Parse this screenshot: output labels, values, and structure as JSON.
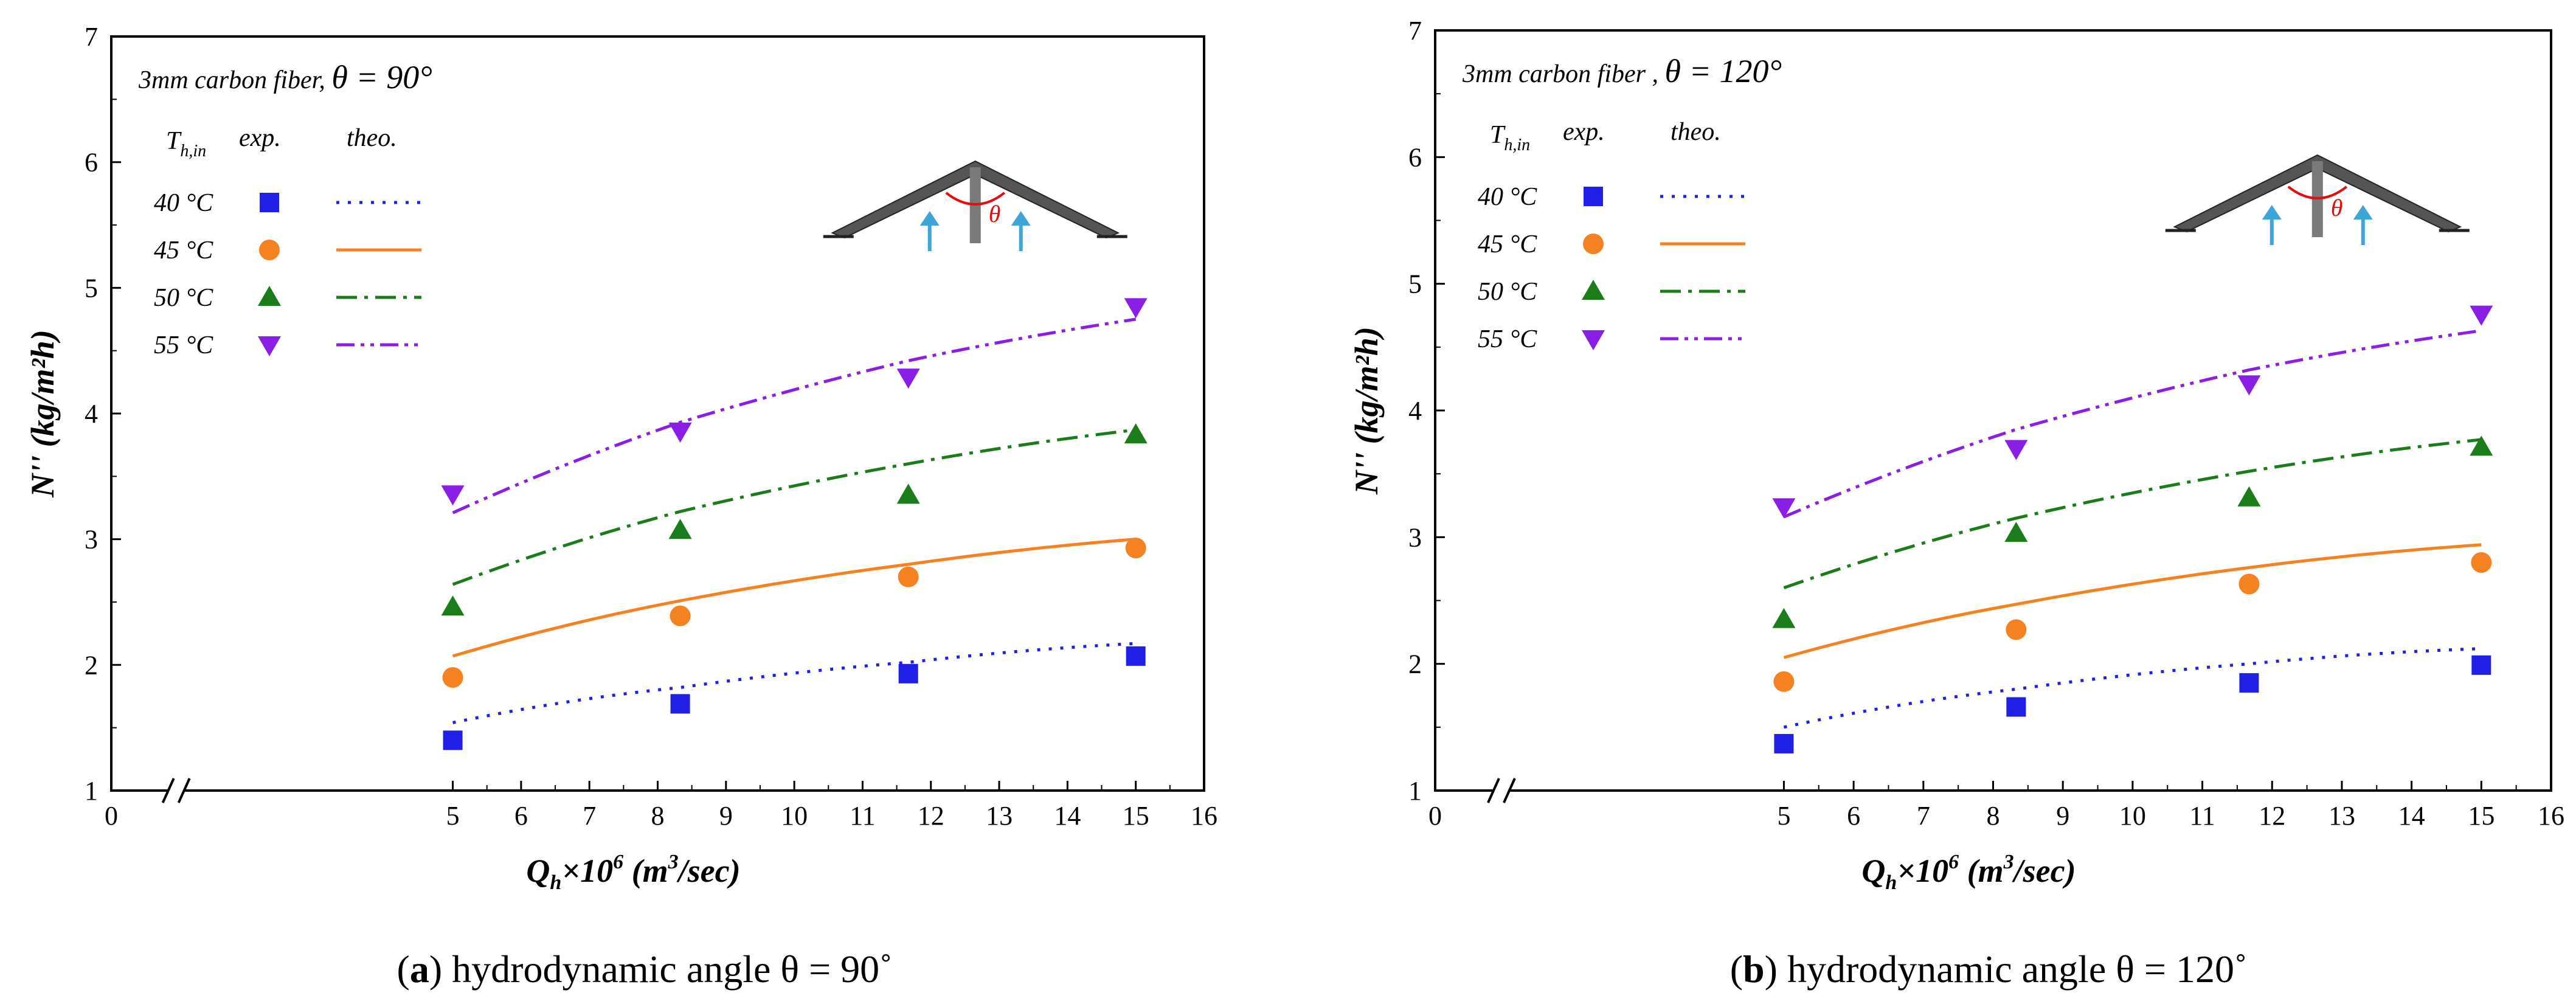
{
  "chart_data": [
    {
      "type": "scatter",
      "panel": "(a)",
      "title": "3mm carbon fiber,",
      "angle_label": "θ = 90°",
      "caption_letter": "a",
      "caption_text": "hydrodynamic angle θ = 90˚",
      "xlabel": {
        "base": "Q",
        "sub": "h",
        "mid": "×10",
        "sup": "6",
        "unit1": " (m",
        "unit_sup": "3",
        "unit2": "/sec)"
      },
      "ylabel": "N'' (kg/m²h)",
      "xlim": [
        0,
        16
      ],
      "ylim": [
        1,
        7
      ],
      "x_ticks": [
        "0",
        "5",
        "6",
        "7",
        "8",
        "9",
        "10",
        "11",
        "12",
        "13",
        "14",
        "15",
        "16"
      ],
      "y_ticks": [
        "1",
        "2",
        "3",
        "4",
        "5",
        "6",
        "7"
      ],
      "legend_header": {
        "temp_label": "T",
        "temp_sub": "h,in",
        "exp": "exp.",
        "theo": "theo."
      },
      "diagram_symbol": "θ",
      "series": [
        {
          "name": "40 °C",
          "marker": "square",
          "color": "#1f1fe6",
          "dash": "dot",
          "x": [
            5,
            8.33,
            11.67,
            15
          ],
          "values": [
            1.4,
            1.69,
            1.93,
            2.07
          ],
          "theo_x": [
            5,
            8.33,
            11.67,
            15
          ],
          "theo_values": [
            1.54,
            1.82,
            2.02,
            2.17
          ]
        },
        {
          "name": "45 °C",
          "marker": "circle",
          "color": "#f58220",
          "dash": "solid",
          "x": [
            5,
            8.33,
            11.67,
            15
          ],
          "values": [
            1.9,
            2.39,
            2.7,
            2.93
          ],
          "theo_x": [
            5,
            8.33,
            11.67,
            15
          ],
          "theo_values": [
            2.07,
            2.51,
            2.8,
            3.0
          ]
        },
        {
          "name": "50 °C",
          "marker": "triangle-up",
          "color": "#1a7d1a",
          "dash": "dashdot",
          "x": [
            5,
            8.33,
            11.67,
            15
          ],
          "values": [
            2.46,
            3.07,
            3.35,
            3.83
          ],
          "theo_x": [
            5,
            8.33,
            11.67,
            15
          ],
          "theo_values": [
            2.64,
            3.22,
            3.6,
            3.87
          ]
        },
        {
          "name": "55 °C",
          "marker": "triangle-down",
          "color": "#8b1ee6",
          "dash": "dashdotdot",
          "x": [
            5,
            8.33,
            11.67,
            15
          ],
          "values": [
            3.36,
            3.86,
            4.29,
            4.85
          ],
          "theo_x": [
            5,
            8.33,
            11.67,
            15
          ],
          "theo_values": [
            3.21,
            3.93,
            4.42,
            4.75
          ]
        }
      ]
    },
    {
      "type": "scatter",
      "panel": "(b)",
      "title": "3mm carbon fiber ,",
      "angle_label": "θ = 120°",
      "caption_letter": "b",
      "caption_text": "hydrodynamic angle θ = 120˚",
      "xlabel": {
        "base": "Q",
        "sub": "h",
        "mid": "×10",
        "sup": "6",
        "unit1": " (m",
        "unit_sup": "3",
        "unit2": "/sec)"
      },
      "ylabel": "N'' (kg/m²h)",
      "xlim": [
        0,
        16
      ],
      "ylim": [
        1,
        7
      ],
      "x_ticks": [
        "0",
        "5",
        "6",
        "7",
        "8",
        "9",
        "10",
        "11",
        "12",
        "13",
        "14",
        "15",
        "16"
      ],
      "y_ticks": [
        "1",
        "2",
        "3",
        "4",
        "5",
        "6",
        "7"
      ],
      "legend_header": {
        "temp_label": "T",
        "temp_sub": "h,in",
        "exp": "exp.",
        "theo": "theo."
      },
      "diagram_symbol": "θ",
      "series": [
        {
          "name": "40 °C",
          "marker": "square",
          "color": "#1f1fe6",
          "dash": "dot",
          "x": [
            5,
            8.33,
            11.67,
            15
          ],
          "values": [
            1.37,
            1.66,
            1.85,
            1.99
          ],
          "theo_x": [
            5,
            8.33,
            11.67,
            15
          ],
          "theo_values": [
            1.5,
            1.8,
            2.0,
            2.12
          ]
        },
        {
          "name": "45 °C",
          "marker": "circle",
          "color": "#f58220",
          "dash": "solid",
          "x": [
            5,
            8.33,
            11.67,
            15
          ],
          "values": [
            1.86,
            2.27,
            2.63,
            2.8
          ],
          "theo_x": [
            5,
            8.33,
            11.67,
            15
          ],
          "theo_values": [
            2.05,
            2.47,
            2.76,
            2.94
          ]
        },
        {
          "name": "50 °C",
          "marker": "triangle-up",
          "color": "#1a7d1a",
          "dash": "dashdot",
          "x": [
            5,
            8.33,
            11.67,
            15
          ],
          "values": [
            2.35,
            3.03,
            3.31,
            3.71
          ],
          "theo_x": [
            5,
            8.33,
            11.67,
            15
          ],
          "theo_values": [
            2.6,
            3.15,
            3.52,
            3.77
          ]
        },
        {
          "name": "55 °C",
          "marker": "triangle-down",
          "color": "#8b1ee6",
          "dash": "dashdotdot",
          "x": [
            5,
            8.33,
            11.67,
            15
          ],
          "values": [
            3.24,
            3.7,
            4.21,
            4.76
          ],
          "theo_x": [
            5,
            8.33,
            11.67,
            15
          ],
          "theo_values": [
            3.16,
            3.85,
            4.32,
            4.63
          ]
        }
      ]
    }
  ]
}
